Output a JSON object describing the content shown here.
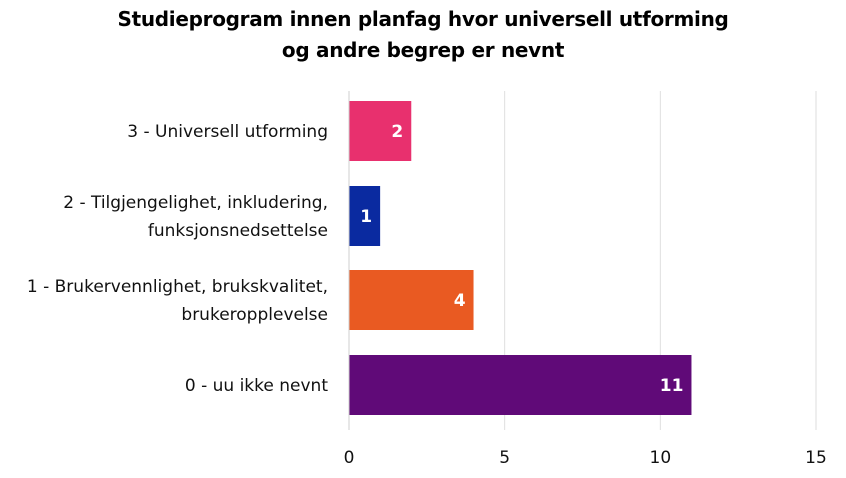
{
  "chart_data": {
    "type": "bar",
    "orientation": "horizontal",
    "title_lines": [
      "Studieprogram innen planfag hvor universell utforming",
      "og andre begrep er nevnt"
    ],
    "categories": [
      [
        "3 - Universell utforming"
      ],
      [
        "2 - Tilgjengelighet, inkludering,",
        "funksjonsnedsettelse"
      ],
      [
        "1 - Brukervennlighet, brukskvalitet,",
        "brukeropplevelse"
      ],
      [
        "0 - uu ikke nevnt"
      ]
    ],
    "values": [
      2,
      1,
      4,
      11
    ],
    "data_labels": [
      "2",
      "1",
      "4",
      "11"
    ],
    "colors": [
      "#e8306e",
      "#0a2aa0",
      "#e95a22",
      "#600a78"
    ],
    "xlim": [
      0,
      15
    ],
    "xticks": [
      0,
      5,
      10,
      15
    ],
    "xlabel": "",
    "ylabel": "",
    "grid": true,
    "legend": "none"
  }
}
